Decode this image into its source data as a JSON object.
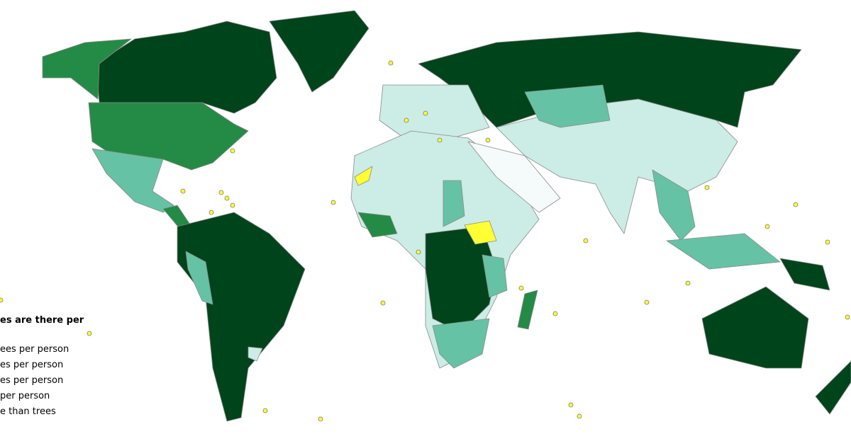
{
  "legend": {
    "title": "es are there per",
    "items": [
      "ees per person",
      "es per person",
      "es per person",
      "per person",
      "e than trees"
    ]
  }
}
